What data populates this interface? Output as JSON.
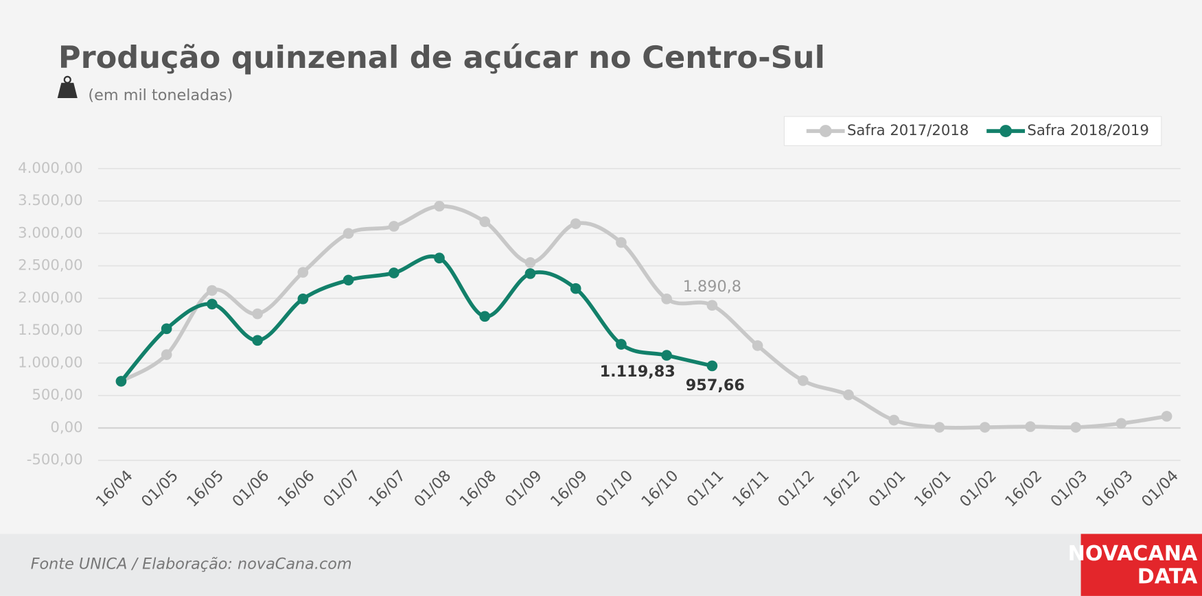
{
  "chart_data": {
    "type": "line",
    "title": "Produção quinzenal de açúcar no Centro-Sul",
    "subtitle": "(em mil toneladas)",
    "source": "Fonte UNICA / Elaboração: novaCana.com",
    "logo": [
      "NOVACANA",
      "DATA"
    ],
    "categories": [
      "16/04",
      "01/05",
      "16/05",
      "01/06",
      "16/06",
      "01/07",
      "16/07",
      "01/08",
      "16/08",
      "01/09",
      "16/09",
      "01/10",
      "16/10",
      "01/11",
      "16/11",
      "01/12",
      "16/12",
      "01/01",
      "16/01",
      "01/02",
      "16/02",
      "01/03",
      "16/03",
      "01/04"
    ],
    "series": [
      {
        "name": "Safra 2017/2018",
        "color": "#c8c8c8",
        "values": [
          720,
          1130,
          2120,
          1760,
          2400,
          3000,
          3110,
          3420,
          3180,
          2550,
          3150,
          2860,
          1990,
          1890.8,
          1270,
          730,
          510,
          120,
          10,
          10,
          20,
          10,
          70,
          180
        ],
        "value_labels": [
          null,
          null,
          null,
          null,
          null,
          null,
          null,
          null,
          null,
          null,
          null,
          null,
          null,
          "1.890,8",
          null,
          null,
          null,
          null,
          null,
          null,
          null,
          null,
          null,
          null
        ]
      },
      {
        "name": "Safra 2018/2019",
        "color": "#12806a",
        "values": [
          720,
          1530,
          1910,
          1350,
          1990,
          2280,
          2390,
          2620,
          1720,
          2380,
          2150,
          1290,
          1119.83,
          957.66,
          null,
          null,
          null,
          null,
          null,
          null,
          null,
          null,
          null,
          null
        ],
        "value_labels": [
          null,
          null,
          null,
          null,
          null,
          null,
          null,
          null,
          null,
          null,
          null,
          null,
          "1.119,83",
          "957,66",
          null,
          null,
          null,
          null,
          null,
          null,
          null,
          null,
          null,
          null
        ]
      }
    ],
    "ylim": [
      -500,
      4000
    ],
    "yticks": [
      {
        "value": -500,
        "label": "-500,00"
      },
      {
        "value": 0,
        "label": "0,00"
      },
      {
        "value": 500,
        "label": "500,00"
      },
      {
        "value": 1000,
        "label": "1.000,00"
      },
      {
        "value": 1500,
        "label": "1.500,00"
      },
      {
        "value": 2000,
        "label": "2.000,00"
      },
      {
        "value": 2500,
        "label": "2.500,00"
      },
      {
        "value": 3000,
        "label": "3.000,00"
      },
      {
        "value": 3500,
        "label": "3.500,00"
      },
      {
        "value": 4000,
        "label": "4.000,00"
      }
    ],
    "grid": true,
    "legend": "top-right"
  }
}
